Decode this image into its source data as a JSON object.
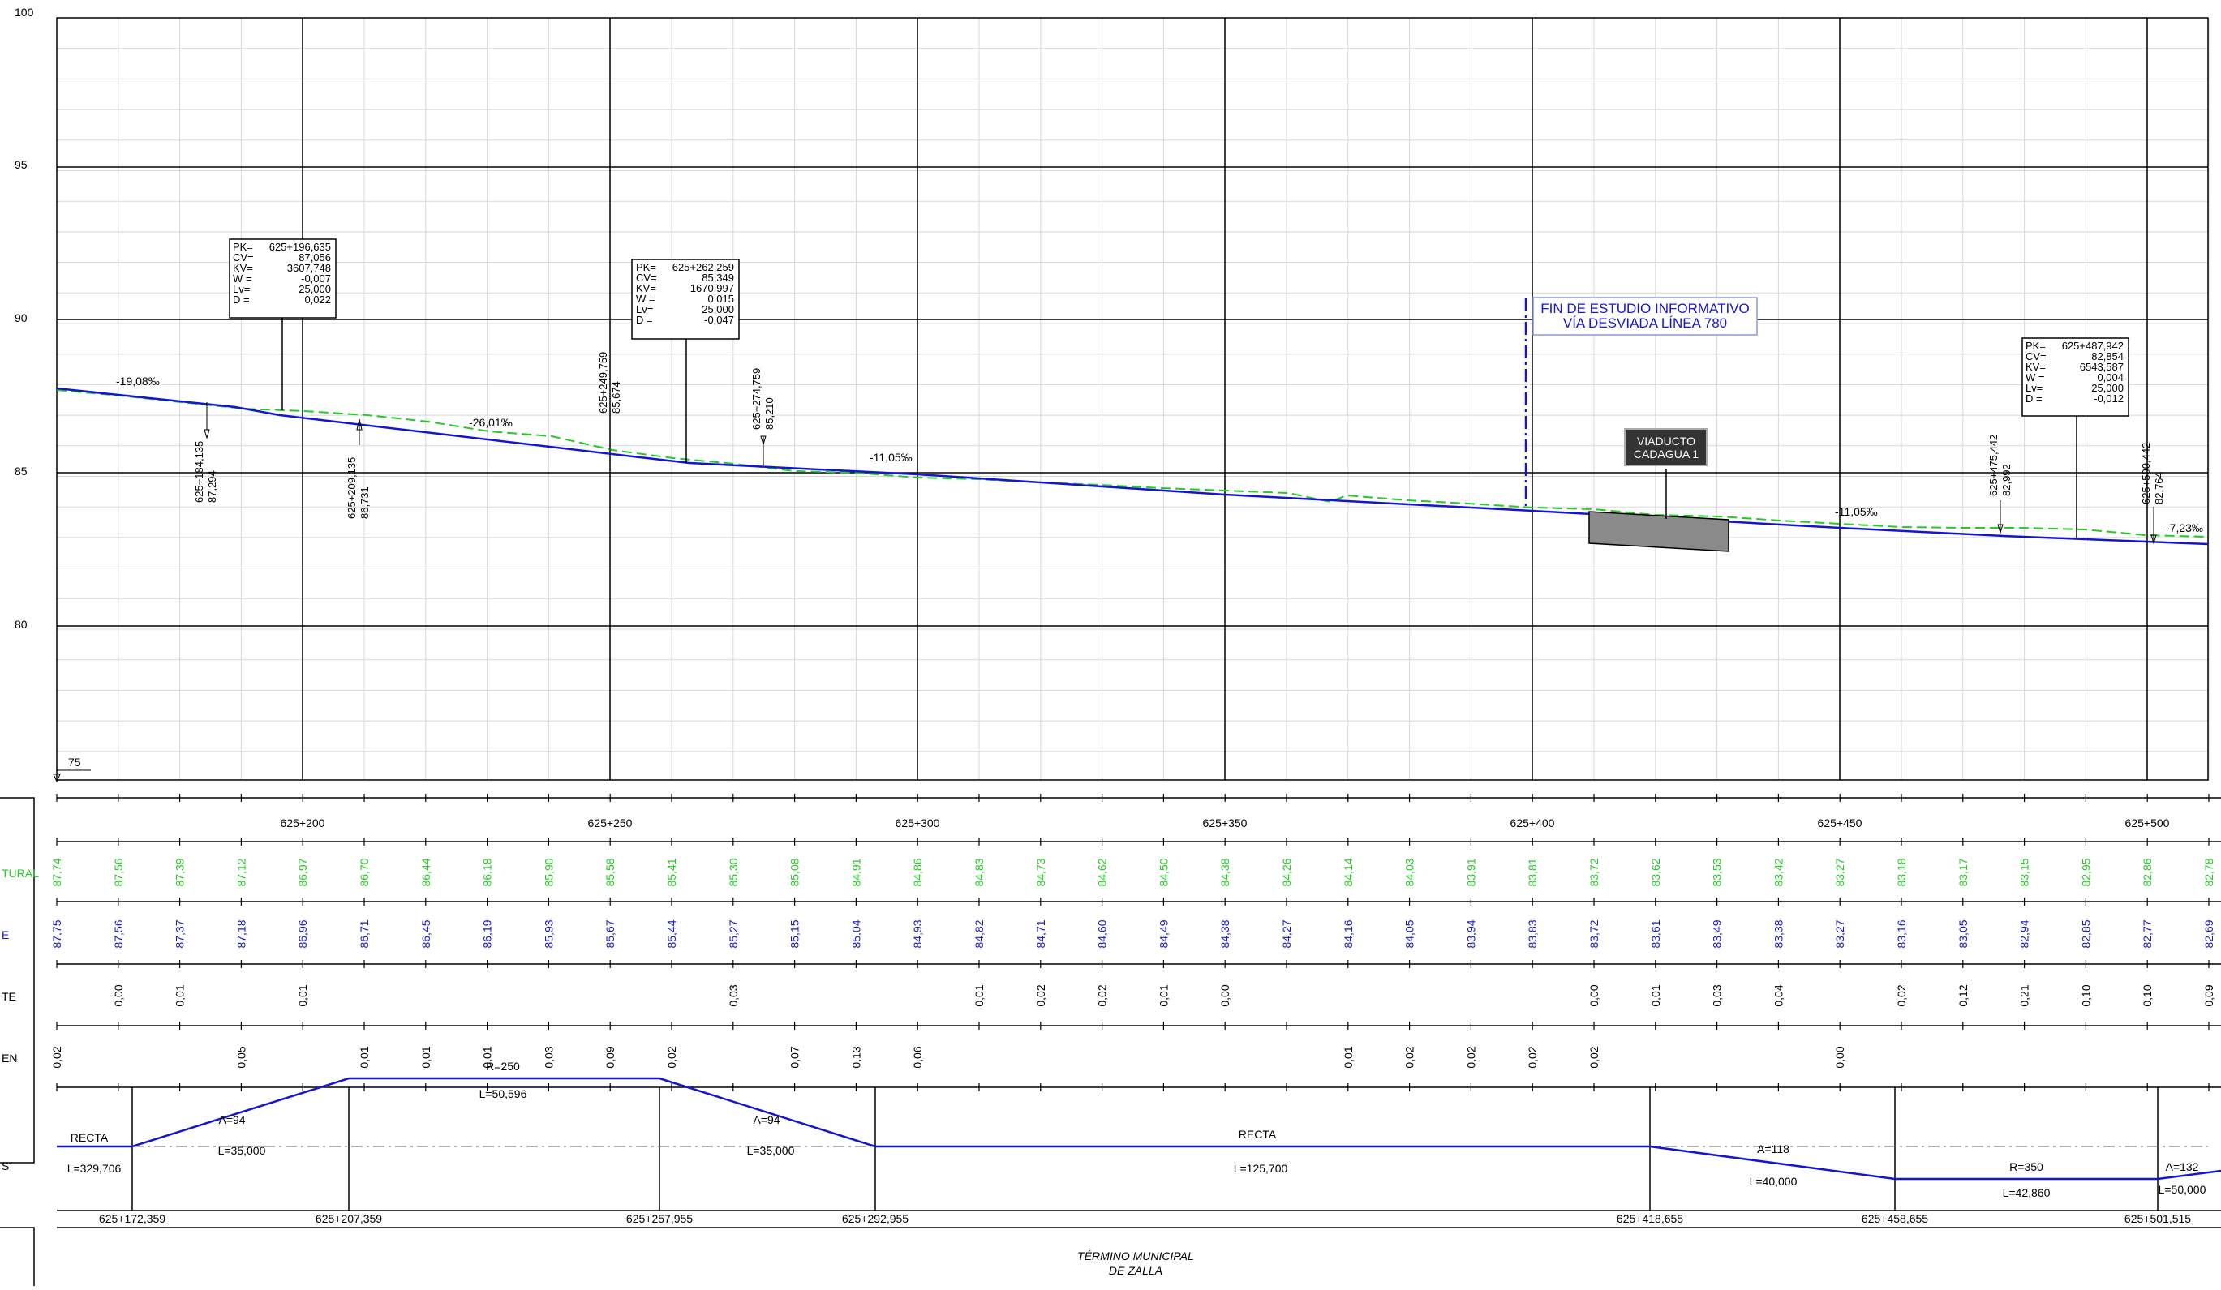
{
  "y_axis": {
    "labels": [
      "100",
      "95",
      "90",
      "85",
      "80"
    ],
    "base_label": "75"
  },
  "chainage_labels": [
    "625+200",
    "625+250",
    "625+300",
    "625+350",
    "625+400",
    "625+450",
    "625+500"
  ],
  "grades": [
    {
      "text": "-19,08‰"
    },
    {
      "text": "-26,01‰"
    },
    {
      "text": "-11,05‰"
    },
    {
      "text": "-11,05‰"
    },
    {
      "text": "-7,23‰"
    }
  ],
  "vertical_curves": [
    {
      "pk": "625+196,635",
      "cv": "87,056",
      "kv": "3607,748",
      "w": "-0,007",
      "lv": "25,000",
      "d": "0,022"
    },
    {
      "pk": "625+262,259",
      "cv": "85,349",
      "kv": "1670,997",
      "w": "0,015",
      "lv": "25,000",
      "d": "-0,047"
    },
    {
      "pk": "625+487,942",
      "cv": "82,854",
      "kv": "6543,587",
      "w": "0,004",
      "lv": "25,000",
      "d": "-0,012"
    }
  ],
  "curve_keys": [
    "PK=",
    "CV=",
    "KV=",
    "W =",
    "Lv=",
    "D ="
  ],
  "point_marks": [
    {
      "pk": "625+184,135",
      "z": "87,294"
    },
    {
      "pk": "625+209,135",
      "z": "86,731"
    },
    {
      "pk": "625+249,759",
      "z": "85,674"
    },
    {
      "pk": "625+274,759",
      "z": "85,210"
    },
    {
      "pk": "625+475,442",
      "z": "82,992"
    },
    {
      "pk": "625+500,442",
      "z": "82,764"
    }
  ],
  "study_end": {
    "line1": "FIN DE ESTUDIO INFORMATIVO",
    "line2": "VÍA DESVIADA LÍNEA 780"
  },
  "viaduct": {
    "line1": "VIADUCTO",
    "line2": "CADAGUA 1"
  },
  "rows": {
    "terrain_title": "TURAL",
    "terrain": [
      "87,74",
      "87,56",
      "87,39",
      "87,12",
      "86,97",
      "86,70",
      "86,44",
      "86,18",
      "85,90",
      "85,58",
      "85,41",
      "85,30",
      "85,08",
      "84,91",
      "84,86",
      "84,83",
      "84,73",
      "84,62",
      "84,50",
      "84,38",
      "84,26",
      "84,14",
      "84,03",
      "83,91",
      "83,81",
      "83,72",
      "83,62",
      "83,53",
      "83,42",
      "83,27",
      "83,18",
      "83,17",
      "83,15",
      "82,95",
      "82,86",
      "82,78"
    ],
    "grade_title": "E",
    "grade": [
      "87,75",
      "87,56",
      "87,37",
      "87,18",
      "86,96",
      "86,71",
      "86,45",
      "86,19",
      "85,93",
      "85,67",
      "85,44",
      "85,27",
      "85,15",
      "85,04",
      "84,93",
      "84,82",
      "84,71",
      "84,60",
      "84,49",
      "84,38",
      "84,27",
      "84,16",
      "84,05",
      "83,94",
      "83,83",
      "83,72",
      "83,61",
      "83,49",
      "83,38",
      "83,27",
      "83,16",
      "83,05",
      "82,94",
      "82,85",
      "82,77",
      "82,69"
    ],
    "fill_title": "TE",
    "fill": [
      "",
      "0,00",
      "0,01",
      "",
      "0,01",
      "",
      "",
      "",
      "",
      "",
      "",
      "0,03",
      "",
      "",
      "",
      "0,01",
      "0,02",
      "0,02",
      "0,01",
      "0,00",
      "",
      "",
      "",
      "",
      "",
      "0,00",
      "0,01",
      "0,03",
      "0,04",
      "",
      "0,02",
      "0,12",
      "0,21",
      "0,10",
      "0,10",
      "0,09"
    ],
    "cut_title": "EN",
    "cut": [
      "0,02",
      "",
      "",
      "0,05",
      "",
      "0,01",
      "0,01",
      "0,01",
      "0,03",
      "0,09",
      "0,02",
      "",
      "0,07",
      "0,13",
      "0,06",
      "",
      "",
      "",
      "",
      "",
      "",
      "0,01",
      "0,02",
      "0,02",
      "0,02",
      "0,02",
      "",
      "",
      "",
      "0,00",
      "",
      "",
      "",
      "",
      "",
      ""
    ]
  },
  "plan": {
    "title": "S",
    "labels": [
      "RECTA",
      "L=329,706",
      "A=94",
      "L=35,000",
      "R=250",
      "L=50,596",
      "A=94",
      "L=35,000",
      "RECTA",
      "L=125,700",
      "A=118",
      "L=40,000",
      "R=350",
      "L=42,860",
      "A=132",
      "L=50,000"
    ],
    "stations": [
      "625+172,359",
      "625+207,359",
      "625+257,955",
      "625+292,955",
      "625+418,655",
      "625+458,655",
      "625+501,515"
    ]
  },
  "municipal": {
    "line1": "TÉRMINO MUNICIPAL",
    "line2": "DE ZALLA"
  },
  "colors": {
    "grade_line": "#1515d0",
    "terrain_line": "#22cc22",
    "grid": "#000000",
    "minor_grid": "#d8d8d8"
  }
}
